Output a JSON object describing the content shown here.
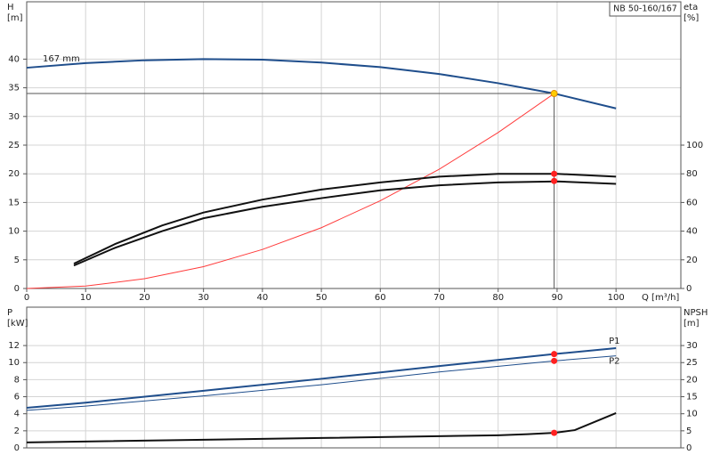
{
  "chart_data": [
    {
      "type": "line",
      "title": "NB 50-160/167",
      "xlabel": "Q [m³/h]",
      "ylabel": [
        "H",
        "[m]"
      ],
      "y2label": [
        "eta",
        "[%]"
      ],
      "xlim": [
        0,
        111
      ],
      "xticks": [
        0,
        10,
        20,
        30,
        40,
        50,
        60,
        70,
        80,
        90,
        100
      ],
      "ylim": [
        0,
        50
      ],
      "yticks": [
        0,
        5,
        10,
        15,
        20,
        25,
        30,
        35,
        40
      ],
      "y2lim": [
        0,
        200
      ],
      "y2ticks": [
        0,
        20,
        40,
        60,
        80,
        100
      ],
      "grid": true,
      "series": [
        {
          "name": "167 mm",
          "color": "#1f4e8c",
          "width": 2,
          "x": [
            0,
            10,
            20,
            30,
            40,
            50,
            60,
            70,
            80,
            89.5,
            100
          ],
          "values": [
            38.5,
            39.3,
            39.8,
            40,
            39.9,
            39.4,
            38.6,
            37.4,
            35.8,
            34,
            31.4
          ]
        },
        {
          "color": "#ff3b3b",
          "width": 1,
          "x": [
            0,
            10,
            20,
            30,
            40,
            50,
            60,
            70,
            80,
            89.5
          ],
          "values": [
            0,
            0.42,
            1.7,
            3.8,
            6.8,
            10.6,
            15.3,
            20.8,
            27.2,
            34
          ]
        },
        {
          "color": "#111111",
          "width": 2,
          "axis": "y2",
          "x": [
            8,
            15,
            23,
            30,
            40,
            50,
            60,
            70,
            80,
            90,
            100
          ],
          "values": [
            17.3,
            31,
            44,
            53,
            62,
            69,
            74,
            78,
            80,
            80,
            78
          ]
        },
        {
          "color": "#111111",
          "width": 2,
          "axis": "y2",
          "x": [
            8,
            15,
            23,
            30,
            40,
            50,
            60,
            70,
            80,
            90,
            100
          ],
          "values": [
            16,
            28.4,
            40,
            49,
            57,
            63,
            68.5,
            72,
            74,
            74.7,
            73
          ]
        },
        {
          "type": "point",
          "color": "#ffcc00",
          "guide": true,
          "x": [
            89.5
          ],
          "values": [
            34
          ]
        },
        {
          "type": "point",
          "color": "#ff2020",
          "axis": "y2",
          "x": [
            89.5,
            89.5
          ],
          "values": [
            80,
            75
          ]
        }
      ]
    },
    {
      "type": "line",
      "ylabel": [
        "P",
        "[kW]"
      ],
      "y2label": [
        "NPSH",
        "[m]"
      ],
      "xlim": [
        0,
        111
      ],
      "ylim": [
        0,
        16.5
      ],
      "yticks": [
        0,
        2,
        4,
        6,
        8,
        10,
        12
      ],
      "y2lim": [
        0,
        41.25
      ],
      "y2ticks": [
        0,
        5,
        10,
        15,
        20,
        25,
        30
      ],
      "grid": true,
      "series": [
        {
          "name": "P1",
          "color": "#1f4e8c",
          "width": 2,
          "x": [
            0,
            10,
            30,
            50,
            70,
            89.5,
            100
          ],
          "values": [
            4.7,
            5.3,
            6.7,
            8.1,
            9.6,
            11,
            11.7
          ]
        },
        {
          "name": "P2",
          "color": "#1f4e8c",
          "width": 1,
          "x": [
            0,
            10,
            30,
            50,
            70,
            89.5,
            100
          ],
          "values": [
            4.4,
            4.9,
            6.1,
            7.4,
            8.9,
            10.2,
            10.8
          ]
        },
        {
          "color": "#111111",
          "width": 2,
          "axis": "y2",
          "x": [
            0,
            50,
            80,
            85,
            89.5,
            93,
            100
          ],
          "values": [
            1.6,
            2.9,
            3.7,
            4,
            4.4,
            5.2,
            10.2
          ]
        },
        {
          "type": "point",
          "color": "#ff2020",
          "x": [
            89.5,
            89.5
          ],
          "values": [
            11,
            10.2
          ]
        },
        {
          "type": "point",
          "color": "#ff2020",
          "axis": "y2",
          "x": [
            89.5
          ],
          "values": [
            4.4
          ]
        }
      ]
    }
  ]
}
